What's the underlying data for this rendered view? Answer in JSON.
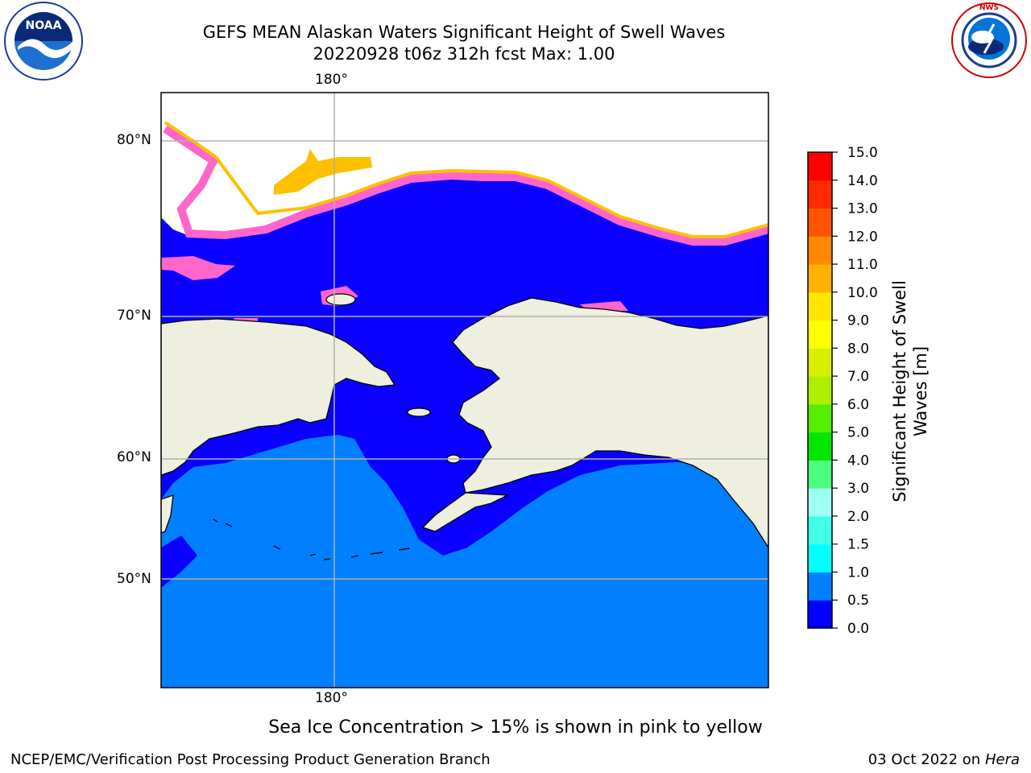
{
  "header": {
    "title_line1": "GEFS MEAN Alaskan Waters Significant Height of Swell Waves",
    "title_line2": "20220928 t06z 312h fcst   Max: 1.00"
  },
  "logos": {
    "noaa": {
      "text": "NOAA",
      "ring_text": "NATIONAL OCEANIC AND ATMOSPHERIC ADMINISTRATION · U.S. DEPARTMENT OF COMMERCE"
    },
    "nws": {
      "ring_text": "NATIONAL WEATHER SERVICE"
    }
  },
  "map": {
    "lon_label_top": "180°",
    "lon_label_bottom": "180°",
    "lat_labels": [
      "80°N",
      "70°N",
      "60°N",
      "50°N"
    ],
    "colors": {
      "land": "#efefdf",
      "ocean_low": "#0a00ff",
      "ocean_mid": "#0080ff",
      "sea_ice": "#ff66cc",
      "ice_edge": "#ffc000"
    }
  },
  "colorbar": {
    "label_line1": "Significant Height of Swell",
    "label_line2": "Waves [m]",
    "ticks": [
      "0.0",
      "0.5",
      "1.0",
      "1.5",
      "2.0",
      "3.0",
      "4.0",
      "5.0",
      "6.0",
      "7.0",
      "8.0",
      "9.0",
      "10.0",
      "11.0",
      "12.0",
      "13.0",
      "14.0",
      "15.0"
    ],
    "colors": [
      "#0000ff",
      "#0080ff",
      "#00ffff",
      "#40ffe6",
      "#9ffff5",
      "#4dff80",
      "#00e600",
      "#55ee00",
      "#b0ee00",
      "#d8f000",
      "#ffff00",
      "#ffe600",
      "#ffb300",
      "#ff8800",
      "#ff5500",
      "#ff2b00",
      "#ff0000"
    ]
  },
  "footer": {
    "sea_ice_note": "Sea Ice Concentration > 15% is shown in pink to yellow",
    "left": "NCEP/EMC/Verification Post Processing Product Generation Branch",
    "right_date": "03 Oct 2022 on ",
    "right_host": "Hera"
  }
}
